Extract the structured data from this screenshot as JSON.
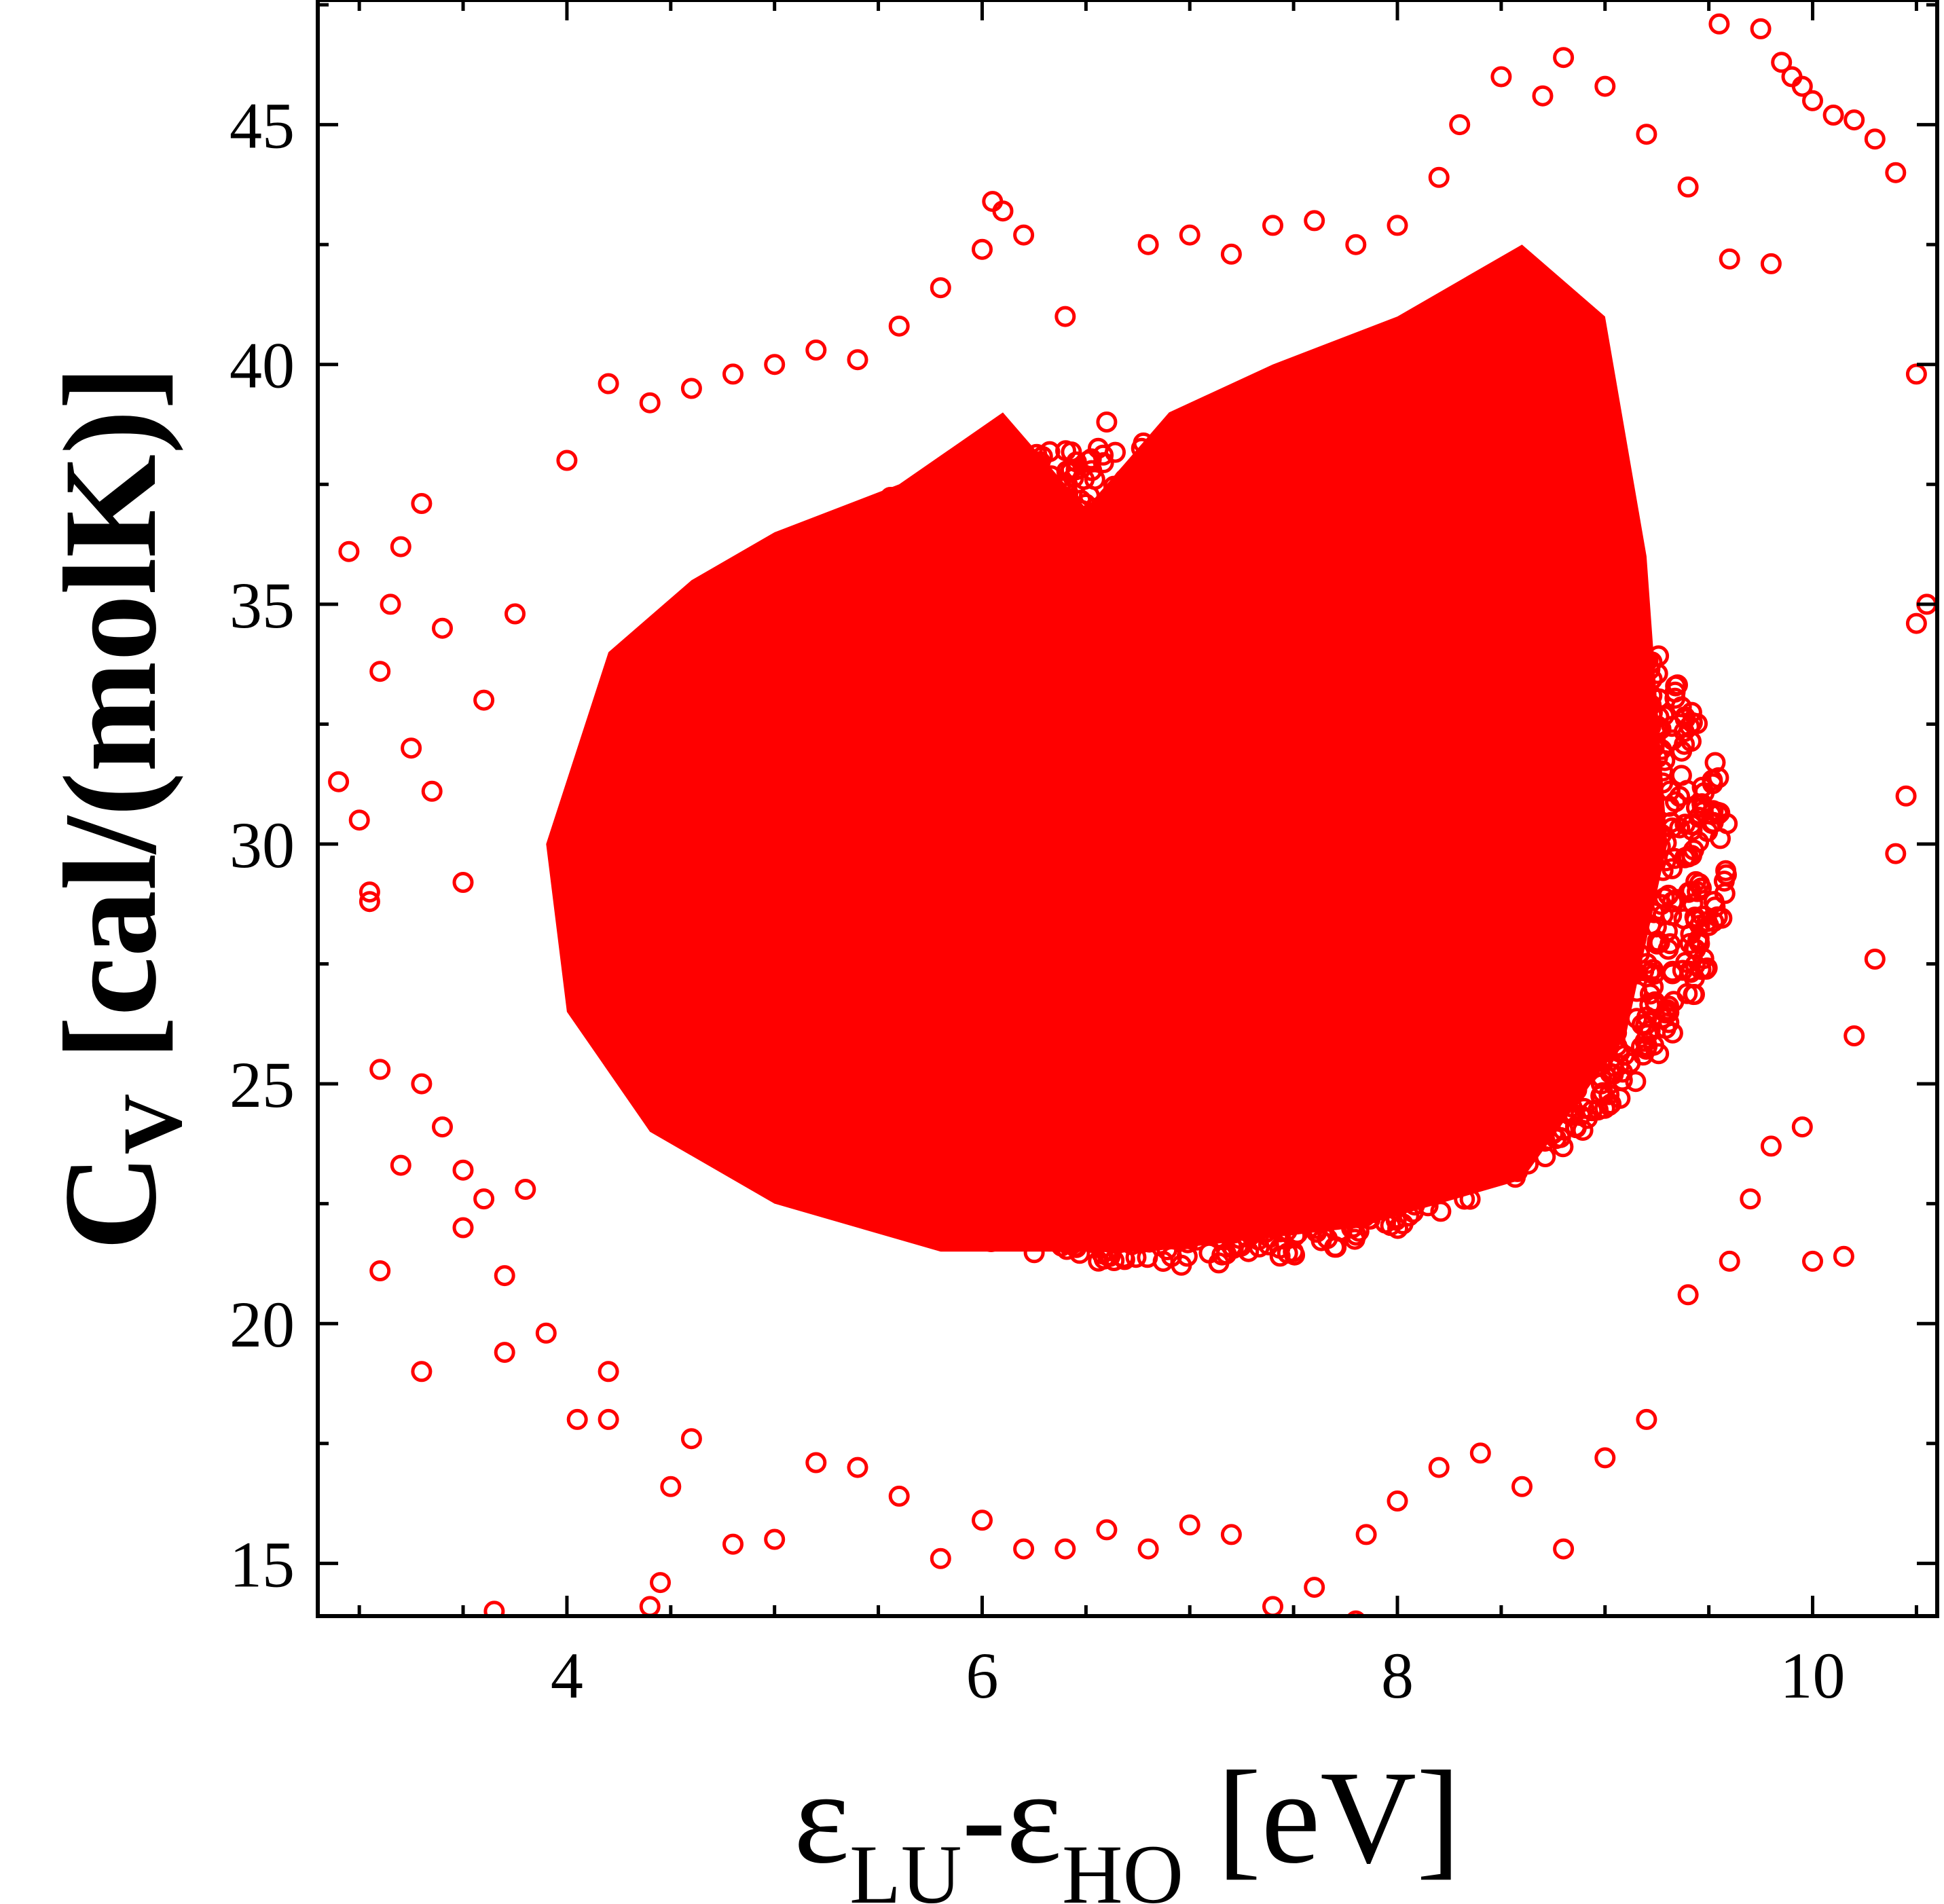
{
  "chart_data": {
    "type": "scatter",
    "title": "",
    "xlabel": {
      "base1": "ε",
      "sub1": "LU",
      "mid": "-",
      "base2": "ε",
      "sub2": "HO",
      "unit": " [eV]"
    },
    "ylabel": {
      "base": "C",
      "sub": "V",
      "unit": " [cal/(molK)]"
    },
    "xlim": [
      2.8,
      10.6
    ],
    "ylim": [
      13.9,
      47.6
    ],
    "xticks": [
      4,
      6,
      8,
      10
    ],
    "yticks": [
      15,
      20,
      25,
      30,
      35,
      40,
      45
    ],
    "marker": {
      "shape": "open-circle",
      "color": "#ff0000"
    },
    "grid": false,
    "legend": "none",
    "series": [
      {
        "description": "dense cloud of molecules; outer scattered points estimated",
        "x": [
          2.9,
          2.95,
          3.0,
          3.05,
          3.1,
          3.2,
          3.3,
          3.4,
          3.5,
          3.6,
          3.7,
          3.8,
          3.65,
          4.45,
          4.2,
          3.3,
          3.4,
          3.15,
          3.2,
          3.1,
          3.25,
          3.35,
          3.05,
          3.5,
          3.6,
          3.75,
          4.0,
          4.2,
          4.4,
          4.6,
          4.8,
          5.0,
          5.2,
          5.4,
          5.6,
          5.8,
          6.0,
          6.05,
          6.1,
          6.2,
          6.4,
          6.6,
          6.8,
          7.0,
          7.2,
          7.4,
          7.6,
          7.8,
          8.0,
          8.2,
          8.3,
          8.5,
          8.7,
          8.8,
          9.0,
          9.2,
          9.4,
          9.6,
          9.8,
          9.55,
          9.75,
          9.85,
          9.9,
          9.95,
          10.0,
          10.1,
          10.2,
          10.3,
          10.4,
          10.5,
          10.55,
          10.5,
          10.45,
          10.4,
          10.3,
          10.2,
          10.15,
          10.0,
          9.95,
          9.8,
          9.7,
          9.6,
          9.4,
          9.2,
          9.0,
          8.8,
          8.6,
          8.4,
          8.2,
          8.0,
          7.85,
          7.8,
          7.6,
          7.4,
          7.2,
          7.0,
          6.8,
          6.6,
          6.4,
          6.2,
          6.0,
          5.8,
          5.6,
          5.4,
          5.2,
          5.0,
          4.8,
          4.6,
          4.5,
          4.4,
          4.2,
          4.05,
          3.9,
          3.7,
          3.5,
          3.3,
          3.1
        ],
        "y": [
          31.3,
          36.1,
          30.5,
          28.8,
          25.3,
          23.3,
          25.0,
          24.1,
          23.2,
          22.6,
          21.0,
          22.8,
          14.0,
          14.6,
          18.0,
          37.1,
          34.5,
          35.0,
          36.2,
          33.6,
          32.0,
          31.1,
          29.0,
          29.2,
          33.0,
          34.8,
          38.0,
          39.6,
          39.2,
          39.5,
          39.8,
          40.0,
          40.3,
          40.1,
          40.8,
          41.6,
          42.4,
          43.4,
          43.2,
          42.7,
          41.0,
          38.8,
          42.5,
          42.7,
          42.3,
          42.9,
          43.0,
          42.5,
          42.9,
          43.9,
          45.0,
          46.0,
          45.6,
          46.4,
          45.8,
          44.8,
          43.7,
          42.2,
          42.1,
          47.1,
          47.0,
          46.3,
          46.0,
          45.8,
          45.5,
          45.2,
          45.1,
          44.7,
          44.0,
          39.8,
          35.0,
          34.6,
          31.0,
          29.8,
          27.6,
          26.0,
          21.4,
          21.3,
          24.1,
          23.7,
          22.6,
          21.3,
          20.6,
          18.0,
          17.2,
          15.3,
          16.6,
          17.3,
          17.0,
          16.3,
          15.6,
          13.8,
          14.5,
          14.1,
          15.6,
          15.8,
          15.3,
          15.7,
          15.3,
          15.3,
          15.9,
          15.1,
          16.4,
          17.0,
          17.1,
          15.5,
          15.4,
          17.6,
          16.6,
          14.1,
          19.0,
          18.0,
          19.8,
          19.4,
          22.0,
          19.0,
          21.1
        ]
      }
    ]
  }
}
